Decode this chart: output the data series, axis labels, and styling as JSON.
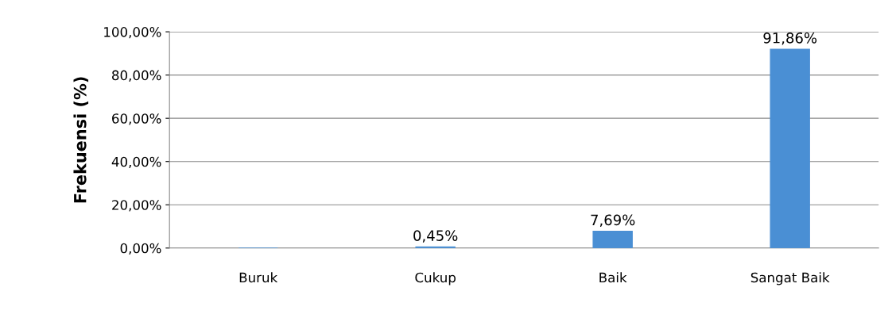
{
  "chart_data": {
    "type": "bar",
    "ylabel": "Frekuensi (%)",
    "categories": [
      "Buruk",
      "Cukup",
      "Baik",
      "Sangat Baik"
    ],
    "values": [
      0,
      0.45,
      7.69,
      91.86
    ],
    "value_labels": [
      null,
      "0,45%",
      "7,69%",
      "91,86%"
    ],
    "color": "#4a8fd4",
    "ylim": [
      0,
      100
    ],
    "yticks": [
      {
        "value": 0,
        "label": "0,00%"
      },
      {
        "value": 20,
        "label": "20,00%"
      },
      {
        "value": 40,
        "label": "40,00%"
      },
      {
        "value": 60,
        "label": "60,00%"
      },
      {
        "value": 80,
        "label": "80,00%"
      },
      {
        "value": 100,
        "label": "100,00%"
      }
    ],
    "grid": "y"
  }
}
